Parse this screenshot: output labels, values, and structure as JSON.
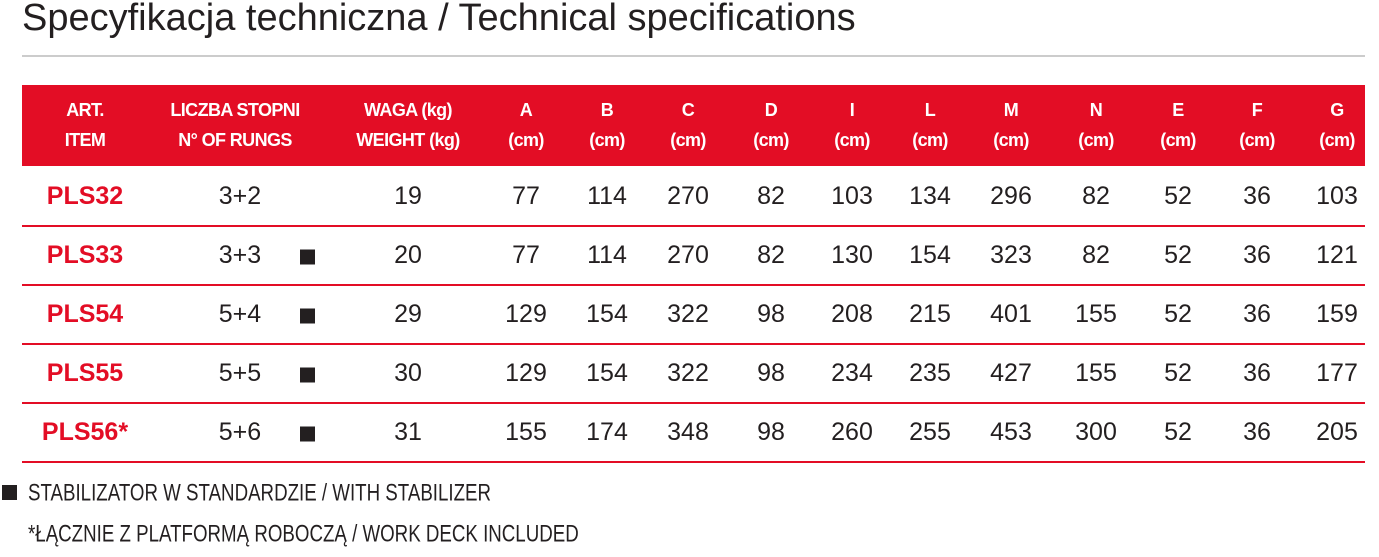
{
  "header": {
    "title": "Specyfikacja techniczna / Technical specifications"
  },
  "table": {
    "columns": [
      [
        "ART.",
        "ITEM"
      ],
      [
        "LICZBA STOPNI",
        "N° OF RUNGS"
      ],
      [
        "WAGA (kg)",
        "WEIGHT (kg)"
      ],
      [
        "A",
        "(cm)"
      ],
      [
        "B",
        "(cm)"
      ],
      [
        "C",
        "(cm)"
      ],
      [
        "D",
        "(cm)"
      ],
      [
        "I",
        "(cm)"
      ],
      [
        "L",
        "(cm)"
      ],
      [
        "M",
        "(cm)"
      ],
      [
        "N",
        "(cm)"
      ],
      [
        "E",
        "(cm)"
      ],
      [
        "F",
        "(cm)"
      ],
      [
        "G",
        "(cm)"
      ]
    ],
    "rows": [
      {
        "item": "PLS32",
        "rungs": "3+2",
        "stabilizer": false,
        "values": [
          19,
          77,
          114,
          270,
          82,
          103,
          134,
          296,
          82,
          52,
          36,
          103
        ]
      },
      {
        "item": "PLS33",
        "rungs": "3+3",
        "stabilizer": true,
        "values": [
          20,
          77,
          114,
          270,
          82,
          130,
          154,
          323,
          82,
          52,
          36,
          121
        ]
      },
      {
        "item": "PLS54",
        "rungs": "5+4",
        "stabilizer": true,
        "values": [
          29,
          129,
          154,
          322,
          98,
          208,
          215,
          401,
          155,
          52,
          36,
          159
        ]
      },
      {
        "item": "PLS55",
        "rungs": "5+5",
        "stabilizer": true,
        "values": [
          30,
          129,
          154,
          322,
          98,
          234,
          235,
          427,
          155,
          52,
          36,
          177
        ]
      },
      {
        "item": "PLS56*",
        "rungs": "5+6",
        "stabilizer": true,
        "values": [
          31,
          155,
          174,
          348,
          98,
          260,
          255,
          453,
          300,
          52,
          36,
          205
        ]
      }
    ]
  },
  "notes": [
    "STABILIZATOR W STANDARDZIE / WITH STABILIZER",
    "*ŁĄCZNIE Z PLATFORMĄ ROBOCZĄ / WORK DECK INCLUDED"
  ]
}
